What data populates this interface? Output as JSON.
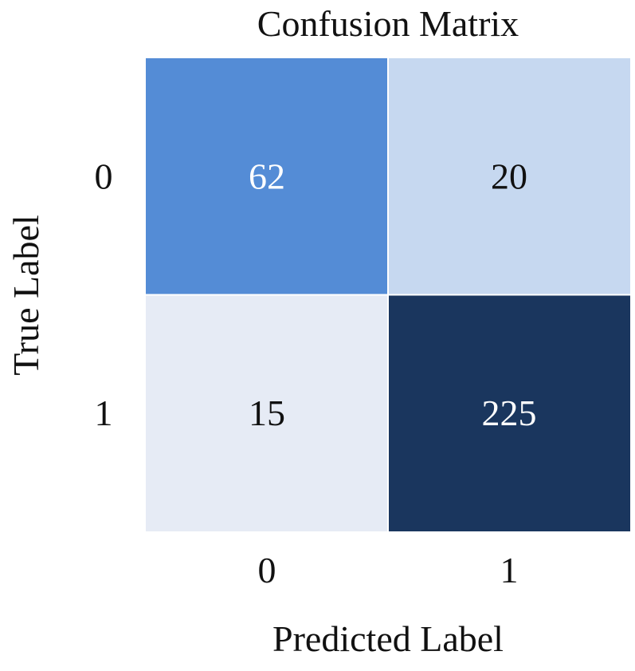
{
  "chart_data": {
    "type": "heatmap",
    "title": "Confusion Matrix",
    "xlabel": "Predicted Label",
    "ylabel": "True Label",
    "x_categories": [
      "0",
      "1"
    ],
    "y_categories": [
      "0",
      "1"
    ],
    "values": [
      [
        62,
        20
      ],
      [
        15,
        225
      ]
    ],
    "colormap": "Blues",
    "colorbar": false,
    "annotations": true,
    "cell_colors": [
      [
        "#548cd6",
        "#c6d8f0"
      ],
      [
        "#e6ebf5",
        "#1a365e"
      ]
    ],
    "text_colors": [
      [
        "#ffffff",
        "#111111"
      ],
      [
        "#111111",
        "#ffffff"
      ]
    ],
    "grid_line_color": "#ffffff"
  }
}
